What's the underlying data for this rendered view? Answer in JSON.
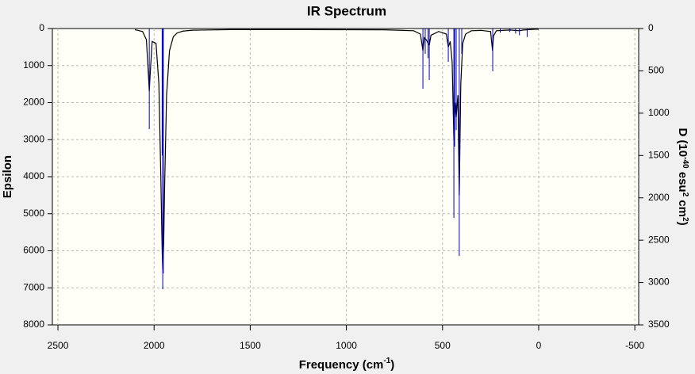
{
  "chart_data": {
    "type": "spectrum",
    "title": "IR Spectrum",
    "xlabel": [
      {
        "text": "Frequency (cm"
      },
      {
        "text": "-1",
        "sup": true
      },
      {
        "text": ")"
      }
    ],
    "ylabel": [
      {
        "text": "Epsilon"
      }
    ],
    "y2label": [
      {
        "text": "D (10"
      },
      {
        "text": "-40",
        "sup": true
      },
      {
        "text": " esu"
      },
      {
        "text": "2",
        "sup": true
      },
      {
        "text": " cm"
      },
      {
        "text": "2",
        "sup": true
      },
      {
        "text": ")"
      }
    ],
    "xlim": [
      2529,
      -520
    ],
    "xticks": [
      2500,
      2000,
      1500,
      1000,
      500,
      0,
      -500
    ],
    "ylim": [
      0,
      8000
    ],
    "yticks": [
      0,
      1000,
      2000,
      3000,
      4000,
      5000,
      6000,
      7000,
      8000
    ],
    "y2lim": [
      0,
      3500
    ],
    "y2ticks": [
      0,
      500,
      1000,
      1500,
      2000,
      2500,
      3000,
      3500
    ],
    "y_inverted": true,
    "grid": true,
    "series": [
      {
        "style": "curve",
        "color": "#000000",
        "x": [
          2100,
          2060,
          2040,
          2030,
          2025,
          2020,
          2010,
          1990,
          1975,
          1965,
          1958,
          1955,
          1950,
          1945,
          1935,
          1920,
          1900,
          1880,
          1850,
          1800,
          1600,
          1200,
          800,
          650,
          615,
          602,
          595,
          585,
          575,
          569,
          560,
          520,
          480,
          470,
          460,
          450,
          441,
          435,
          429,
          420,
          413,
          405,
          395,
          380,
          350,
          300,
          250,
          240,
          235,
          220,
          150,
          100,
          80,
          50,
          20,
          0
        ],
        "values": [
          30,
          80,
          300,
          1200,
          1690,
          1200,
          350,
          400,
          1500,
          4000,
          6000,
          6500,
          5800,
          4200,
          1800,
          600,
          220,
          120,
          70,
          45,
          30,
          30,
          35,
          60,
          150,
          600,
          250,
          300,
          400,
          450,
          180,
          80,
          150,
          500,
          350,
          900,
          3000,
          2000,
          2400,
          1800,
          4500,
          1500,
          400,
          150,
          60,
          50,
          80,
          600,
          200,
          60,
          40,
          60,
          40,
          30,
          20,
          20
        ]
      },
      {
        "style": "stick",
        "color": "#0000c0",
        "axis": "y2",
        "x": [
          2025,
          1958,
          1955,
          1952,
          602,
          590,
          575,
          569,
          470,
          441,
          437,
          429,
          413,
          400,
          239,
          200,
          150,
          120,
          100,
          60
        ],
        "values": [
          1188,
          1500,
          3079,
          2892,
          711,
          300,
          350,
          608,
          393,
          2237,
          1394,
          1200,
          2686,
          300,
          505,
          50,
          40,
          60,
          80,
          100
        ]
      }
    ]
  }
}
